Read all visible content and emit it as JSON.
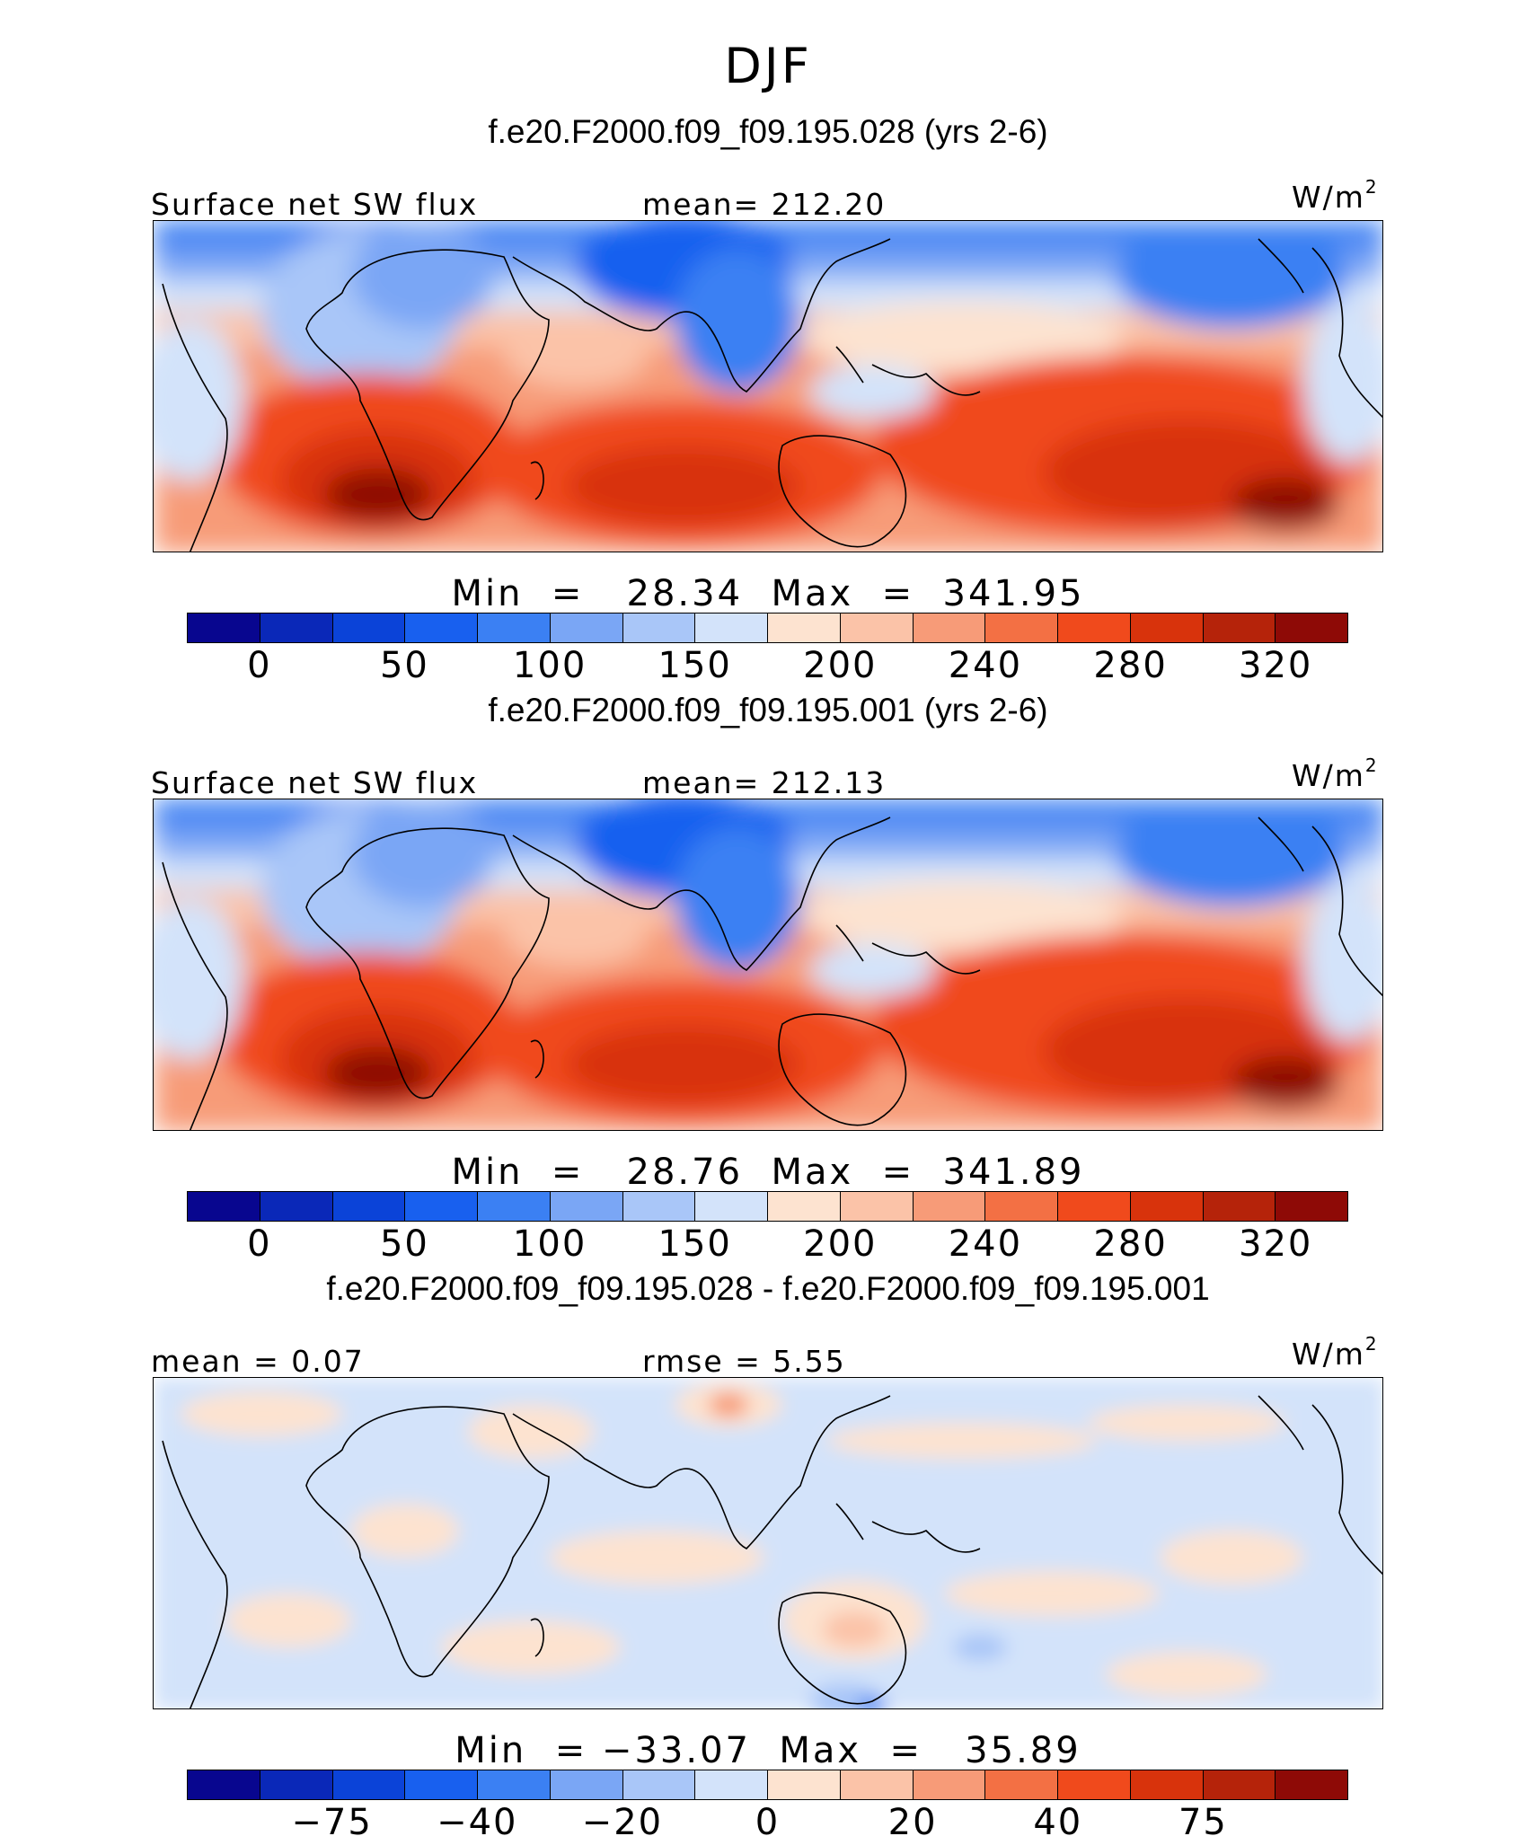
{
  "figure": {
    "title": "DJF"
  },
  "panels": [
    {
      "id": "p1",
      "case_title": "f.e20.F2000.f09_f09.195.028 (yrs 2-6)",
      "left_label": "Surface net SW flux",
      "center_label": "mean=  212.20",
      "units": "W/m",
      "units_sup": "2",
      "minmax": "Min  =   28.34  Max  =  341.95",
      "stats": {
        "mean": 212.2,
        "min": 28.34,
        "max": 341.95
      },
      "colorbar": {
        "colors": [
          "#08068f",
          "#0a28b8",
          "#0b43d8",
          "#1860ef",
          "#3b80f3",
          "#7aa6f5",
          "#a9c6f8",
          "#d3e3fa",
          "#fde3d0",
          "#fbc3a8",
          "#f79b78",
          "#f37044",
          "#f04a1c",
          "#d8330c",
          "#b5230a",
          "#8e0a06"
        ],
        "tick_labels": [
          "0",
          "50",
          "100",
          "150",
          "200",
          "240",
          "280",
          "320"
        ]
      }
    },
    {
      "id": "p2",
      "case_title": "f.e20.F2000.f09_f09.195.001 (yrs 2-6)",
      "left_label": "Surface net SW flux",
      "center_label": "mean=  212.13",
      "units": "W/m",
      "units_sup": "2",
      "minmax": "Min  =   28.76  Max  =  341.89",
      "stats": {
        "mean": 212.13,
        "min": 28.76,
        "max": 341.89
      },
      "colorbar": {
        "colors": [
          "#08068f",
          "#0a28b8",
          "#0b43d8",
          "#1860ef",
          "#3b80f3",
          "#7aa6f5",
          "#a9c6f8",
          "#d3e3fa",
          "#fde3d0",
          "#fbc3a8",
          "#f79b78",
          "#f37044",
          "#f04a1c",
          "#d8330c",
          "#b5230a",
          "#8e0a06"
        ],
        "tick_labels": [
          "0",
          "50",
          "100",
          "150",
          "200",
          "240",
          "280",
          "320"
        ]
      }
    },
    {
      "id": "p3",
      "case_title": "f.e20.F2000.f09_f09.195.028 - f.e20.F2000.f09_f09.195.001",
      "left_label": "mean =    0.07",
      "center_label": "rmse =    5.55",
      "units": "W/m",
      "units_sup": "2",
      "minmax": "Min  = −33.07  Max  =   35.89",
      "stats": {
        "mean": 0.07,
        "rmse": 5.55,
        "min": -33.07,
        "max": 35.89
      },
      "colorbar": {
        "colors": [
          "#08068f",
          "#0a28b8",
          "#0b43d8",
          "#1860ef",
          "#3b80f3",
          "#7aa6f5",
          "#a9c6f8",
          "#d3e3fa",
          "#fde3d0",
          "#fbc3a8",
          "#f79b78",
          "#f37044",
          "#f04a1c",
          "#d8330c",
          "#b5230a",
          "#8e0a06"
        ],
        "tick_labels": [
          "−75",
          "−40",
          "−20",
          "0",
          "20",
          "40",
          "75"
        ]
      }
    }
  ]
}
